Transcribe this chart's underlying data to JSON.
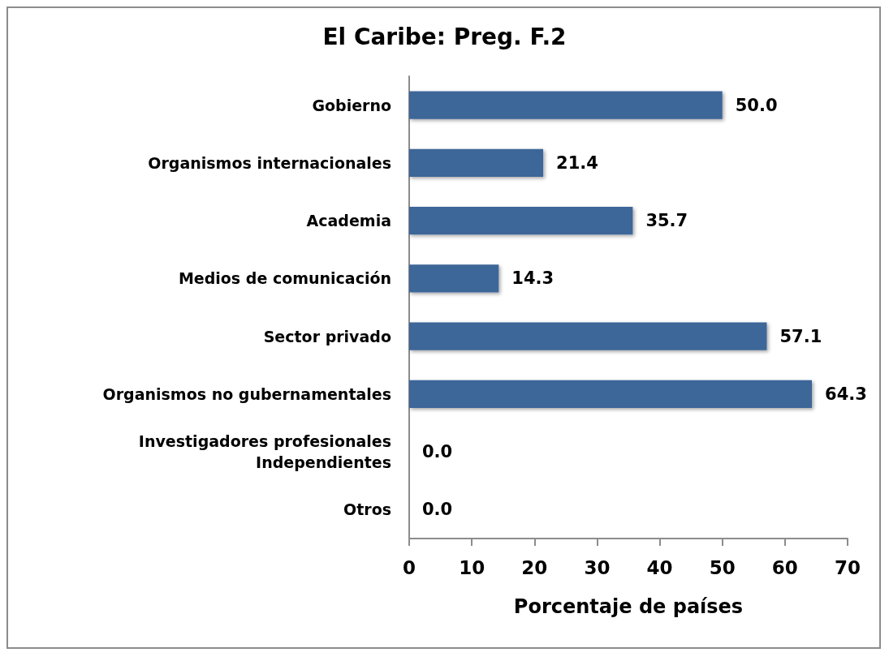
{
  "chart_data": {
    "type": "bar",
    "orientation": "horizontal",
    "title": "El Caribe: Preg. F.2",
    "xlabel": "Porcentaje de países",
    "categories": [
      "Gobierno",
      "Organismos internacionales",
      "Academia",
      "Medios de comunicación",
      "Sector privado",
      "Organismos no gubernamentales",
      "Investigadores profesionales\nIndependientes",
      "Otros"
    ],
    "values": [
      50.0,
      21.4,
      35.7,
      14.3,
      57.1,
      64.3,
      0.0,
      0.0
    ],
    "value_labels": [
      "50.0",
      "21.4",
      "35.7",
      "14.3",
      "57.1",
      "64.3",
      "0.0",
      "0.0"
    ],
    "color": "#3d6699",
    "xlim": [
      0,
      70
    ],
    "xticks": [
      0,
      10,
      20,
      30,
      40,
      50,
      60,
      70
    ],
    "grid": false
  }
}
